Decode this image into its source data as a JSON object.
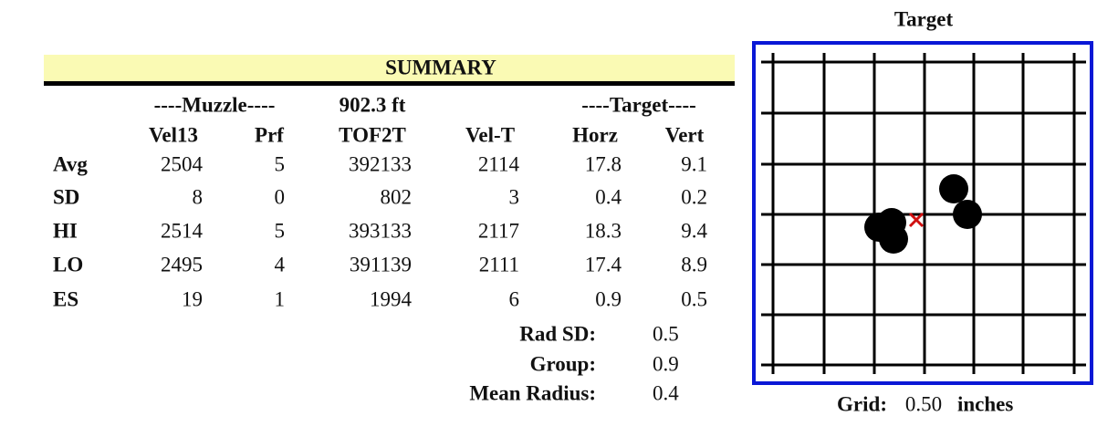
{
  "summary": {
    "title": "SUMMARY",
    "group_headers": [
      "----Muzzle----",
      "902.3 ft",
      "----Target----"
    ],
    "columns": [
      "Vel13",
      "Prf",
      "TOF2T",
      "Vel-T",
      "Horz",
      "Vert"
    ],
    "rows": [
      {
        "label": "Avg",
        "values": [
          2504,
          5,
          392133,
          2114,
          17.8,
          9.1
        ]
      },
      {
        "label": "SD",
        "values": [
          8,
          0,
          802,
          3,
          0.4,
          0.2
        ]
      },
      {
        "label": "HI",
        "values": [
          2514,
          5,
          393133,
          2117,
          18.3,
          9.4
        ]
      },
      {
        "label": "LO",
        "values": [
          2495,
          4,
          391139,
          2111,
          17.4,
          8.9
        ]
      },
      {
        "label": "ES",
        "values": [
          19,
          1,
          1994,
          6,
          0.9,
          0.5
        ]
      }
    ],
    "stats": [
      {
        "label": "Rad SD:",
        "value": 0.5
      },
      {
        "label": "Group:",
        "value": 0.9
      },
      {
        "label": "Mean Radius:",
        "value": 0.4
      }
    ]
  },
  "target": {
    "title": "Target",
    "grid_label": "Grid:",
    "grid_value": "0.50",
    "grid_unit": "inches"
  }
}
